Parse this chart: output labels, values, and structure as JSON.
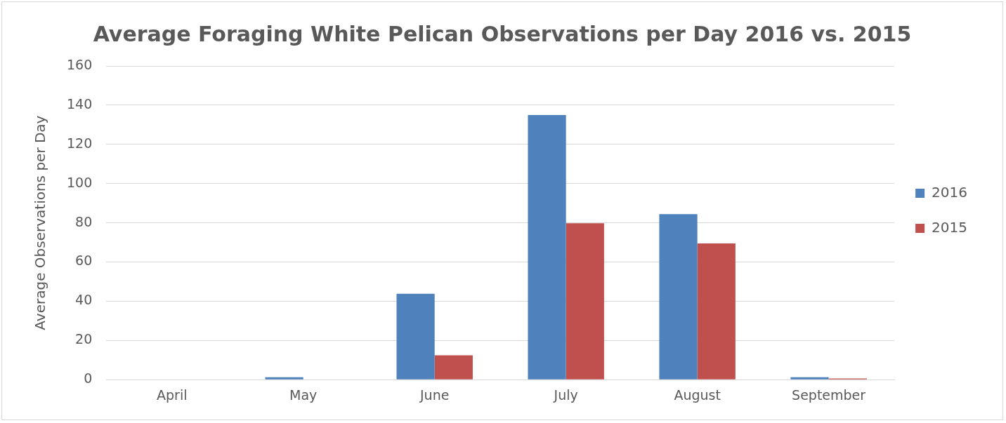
{
  "chart_data": {
    "type": "bar",
    "title": "Average Foraging White Pelican Observations per Day 2016 vs. 2015",
    "ylabel": "Average Observations per Day",
    "categories": [
      "April",
      "May",
      "June",
      "July",
      "August",
      "September"
    ],
    "series": [
      {
        "name": "2016",
        "color": "#4f81bd",
        "values": [
          0,
          1.2,
          43.8,
          135,
          84.4,
          1.2
        ]
      },
      {
        "name": "2015",
        "color": "#c0504d",
        "values": [
          0,
          0,
          12.4,
          79.8,
          69.5,
          0.6
        ]
      }
    ],
    "ylim": [
      0,
      160
    ],
    "yticks": [
      0,
      20,
      40,
      60,
      80,
      100,
      120,
      140,
      160
    ],
    "grid": "y",
    "legend": "right"
  }
}
